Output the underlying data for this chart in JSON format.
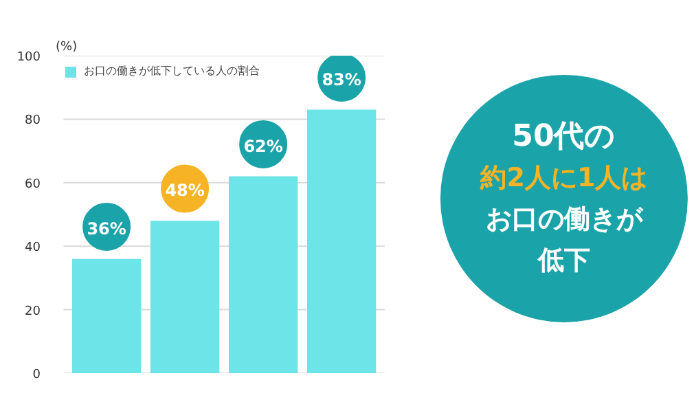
{
  "chart_data": {
    "type": "bar",
    "categories": [
      null,
      null,
      null,
      null
    ],
    "series": [
      {
        "name": "お口の働きが低下している人の割合",
        "color": "#6ce4e8",
        "values": [
          36,
          48,
          62,
          83
        ],
        "value_labels": [
          "36%",
          "48%",
          "62%",
          "83%"
        ]
      }
    ],
    "ylabel": "(%)",
    "ylim": [
      0,
      100
    ],
    "yticks": [
      0,
      20,
      40,
      60,
      80,
      100
    ],
    "grid": "y",
    "legend": "top left",
    "tick_labels": "y",
    "annotations": [
      "50代の",
      "約2人に1人は",
      "お口の働きが",
      "低下"
    ]
  }
}
